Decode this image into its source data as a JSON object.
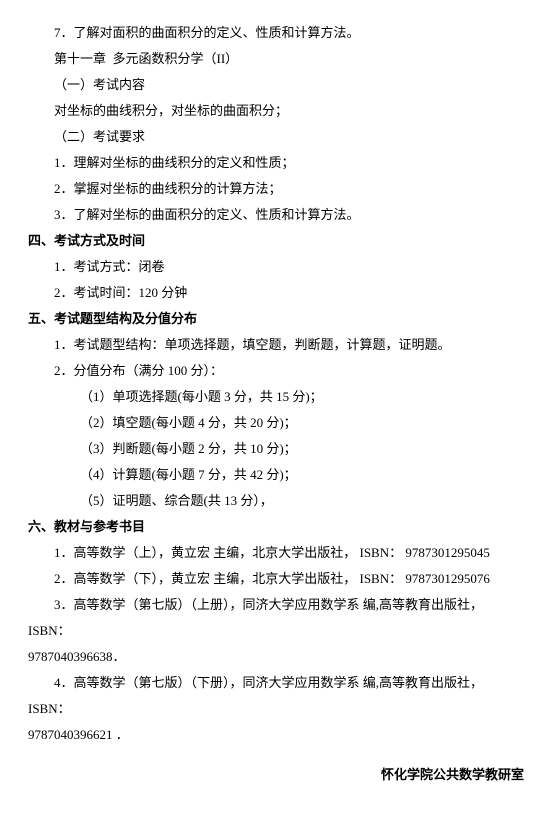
{
  "l1": "7．了解对面积的曲面积分的定义、性质和计算方法。",
  "l2": "第十一章  多元函数积分学（II）",
  "l3": "（一）考试内容",
  "l4": "对坐标的曲线积分，对坐标的曲面积分；",
  "l5": "（二）考试要求",
  "l6": "1．理解对坐标的曲线积分的定义和性质；",
  "l7": "2．掌握对坐标的曲线积分的计算方法；",
  "l8": "3．了解对坐标的曲面积分的定义、性质和计算方法。",
  "s4": "四、考试方式及时间",
  "l9": "1．考试方式：闭卷",
  "l10": "2．考试时间：120 分钟",
  "s5": "五、考试题型结构及分值分布",
  "l11": "1．考试题型结构：单项选择题，填空题，判断题，计算题，证明题。",
  "l12": "2．分值分布（满分 100 分）：",
  "l13": "（1）单项选择题(每小题 3 分，共 15 分)；",
  "l14": "（2）填空题(每小题 4 分，共 20 分)；",
  "l15": "（3）判断题(每小题 2 分，共 10 分)；",
  "l16": "（4）计算题(每小题 7 分，共 42 分)；",
  "l17": "（5）证明题、综合题(共 13 分），",
  "s6": "六、教材与参考书目",
  "l18": "1．高等数学（上），黄立宏 主编，北京大学出版社， ISBN： 9787301295045",
  "l19": "2．高等数学（下），黄立宏 主编，北京大学出版社， ISBN： 9787301295076",
  "l20a": "3．高等数学（第七版）（上册），同济大学应用数学系 编,高等教育出版社，ISBN：",
  "l20b": "9787040396638．",
  "l21a": "4．高等数学（第七版）（下册），同济大学应用数学系 编,高等教育出版社，ISBN：",
  "l21b": "9787040396621 ．",
  "sig": "怀化学院公共数学教研室"
}
